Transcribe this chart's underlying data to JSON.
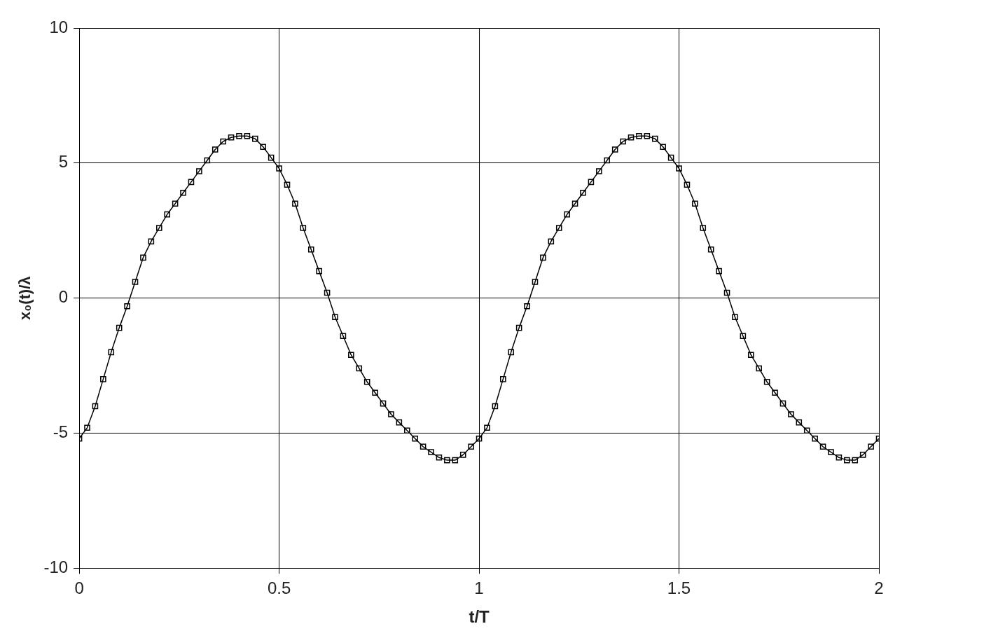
{
  "chart_data": {
    "type": "line",
    "xlabel": "t/T",
    "ylabel": "x₀(t)/λ",
    "x": [
      0,
      0.02,
      0.04,
      0.06,
      0.08,
      0.1,
      0.12,
      0.14,
      0.16,
      0.18,
      0.2,
      0.22,
      0.24,
      0.26,
      0.28,
      0.3,
      0.32,
      0.34,
      0.36,
      0.38,
      0.4,
      0.42,
      0.44,
      0.46,
      0.48,
      0.5,
      0.52,
      0.54,
      0.56,
      0.58,
      0.6,
      0.62,
      0.64,
      0.66,
      0.68,
      0.7,
      0.72,
      0.74,
      0.76,
      0.78,
      0.8,
      0.82,
      0.84,
      0.86,
      0.88,
      0.9,
      0.92,
      0.94,
      0.96,
      0.98,
      1,
      1.02,
      1.04,
      1.06,
      1.08,
      1.1,
      1.12,
      1.14,
      1.16,
      1.18,
      1.2,
      1.22,
      1.24,
      1.26,
      1.28,
      1.3,
      1.32,
      1.34,
      1.36,
      1.38,
      1.4,
      1.42,
      1.44,
      1.46,
      1.48,
      1.5,
      1.52,
      1.54,
      1.56,
      1.58,
      1.6,
      1.62,
      1.64,
      1.66,
      1.68,
      1.7,
      1.72,
      1.74,
      1.76,
      1.78,
      1.8,
      1.82,
      1.84,
      1.86,
      1.88,
      1.9,
      1.92,
      1.94,
      1.96,
      1.98,
      2
    ],
    "series": [
      {
        "color": "#000000",
        "values": [
          -5.2,
          -4.8,
          -4.0,
          -3.0,
          -2.0,
          -1.1,
          -0.3,
          0.6,
          1.5,
          2.1,
          2.6,
          3.1,
          3.5,
          3.9,
          4.3,
          4.7,
          5.1,
          5.5,
          5.8,
          5.95,
          6.0,
          6.0,
          5.9,
          5.6,
          5.2,
          4.8,
          4.2,
          3.5,
          2.6,
          1.8,
          1.0,
          0.2,
          -0.7,
          -1.4,
          -2.1,
          -2.6,
          -3.1,
          -3.5,
          -3.9,
          -4.3,
          -4.6,
          -4.9,
          -5.2,
          -5.5,
          -5.7,
          -5.9,
          -6.0,
          -6.0,
          -5.8,
          -5.5,
          -5.2,
          -4.8,
          -4.0,
          -3.0,
          -2.0,
          -1.1,
          -0.3,
          0.6,
          1.5,
          2.1,
          2.6,
          3.1,
          3.5,
          3.9,
          4.3,
          4.7,
          5.1,
          5.5,
          5.8,
          5.95,
          6.0,
          6.0,
          5.9,
          5.6,
          5.2,
          4.8,
          4.2,
          3.5,
          2.6,
          1.8,
          1.0,
          0.2,
          -0.7,
          -1.4,
          -2.1,
          -2.6,
          -3.1,
          -3.5,
          -3.9,
          -4.3,
          -4.6,
          -4.9,
          -5.2,
          -5.5,
          -5.7,
          -5.9,
          -6.0,
          -6.0,
          -5.8,
          -5.5,
          -5.2
        ]
      }
    ],
    "xlim": [
      0,
      2
    ],
    "xticks": [
      0,
      0.5,
      1,
      1.5,
      2
    ],
    "ylim": [
      -10,
      10
    ],
    "yticks": [
      -10,
      -5,
      0,
      5,
      10
    ],
    "grid": true,
    "legend": false,
    "marker": "square",
    "line_style": "solid"
  }
}
